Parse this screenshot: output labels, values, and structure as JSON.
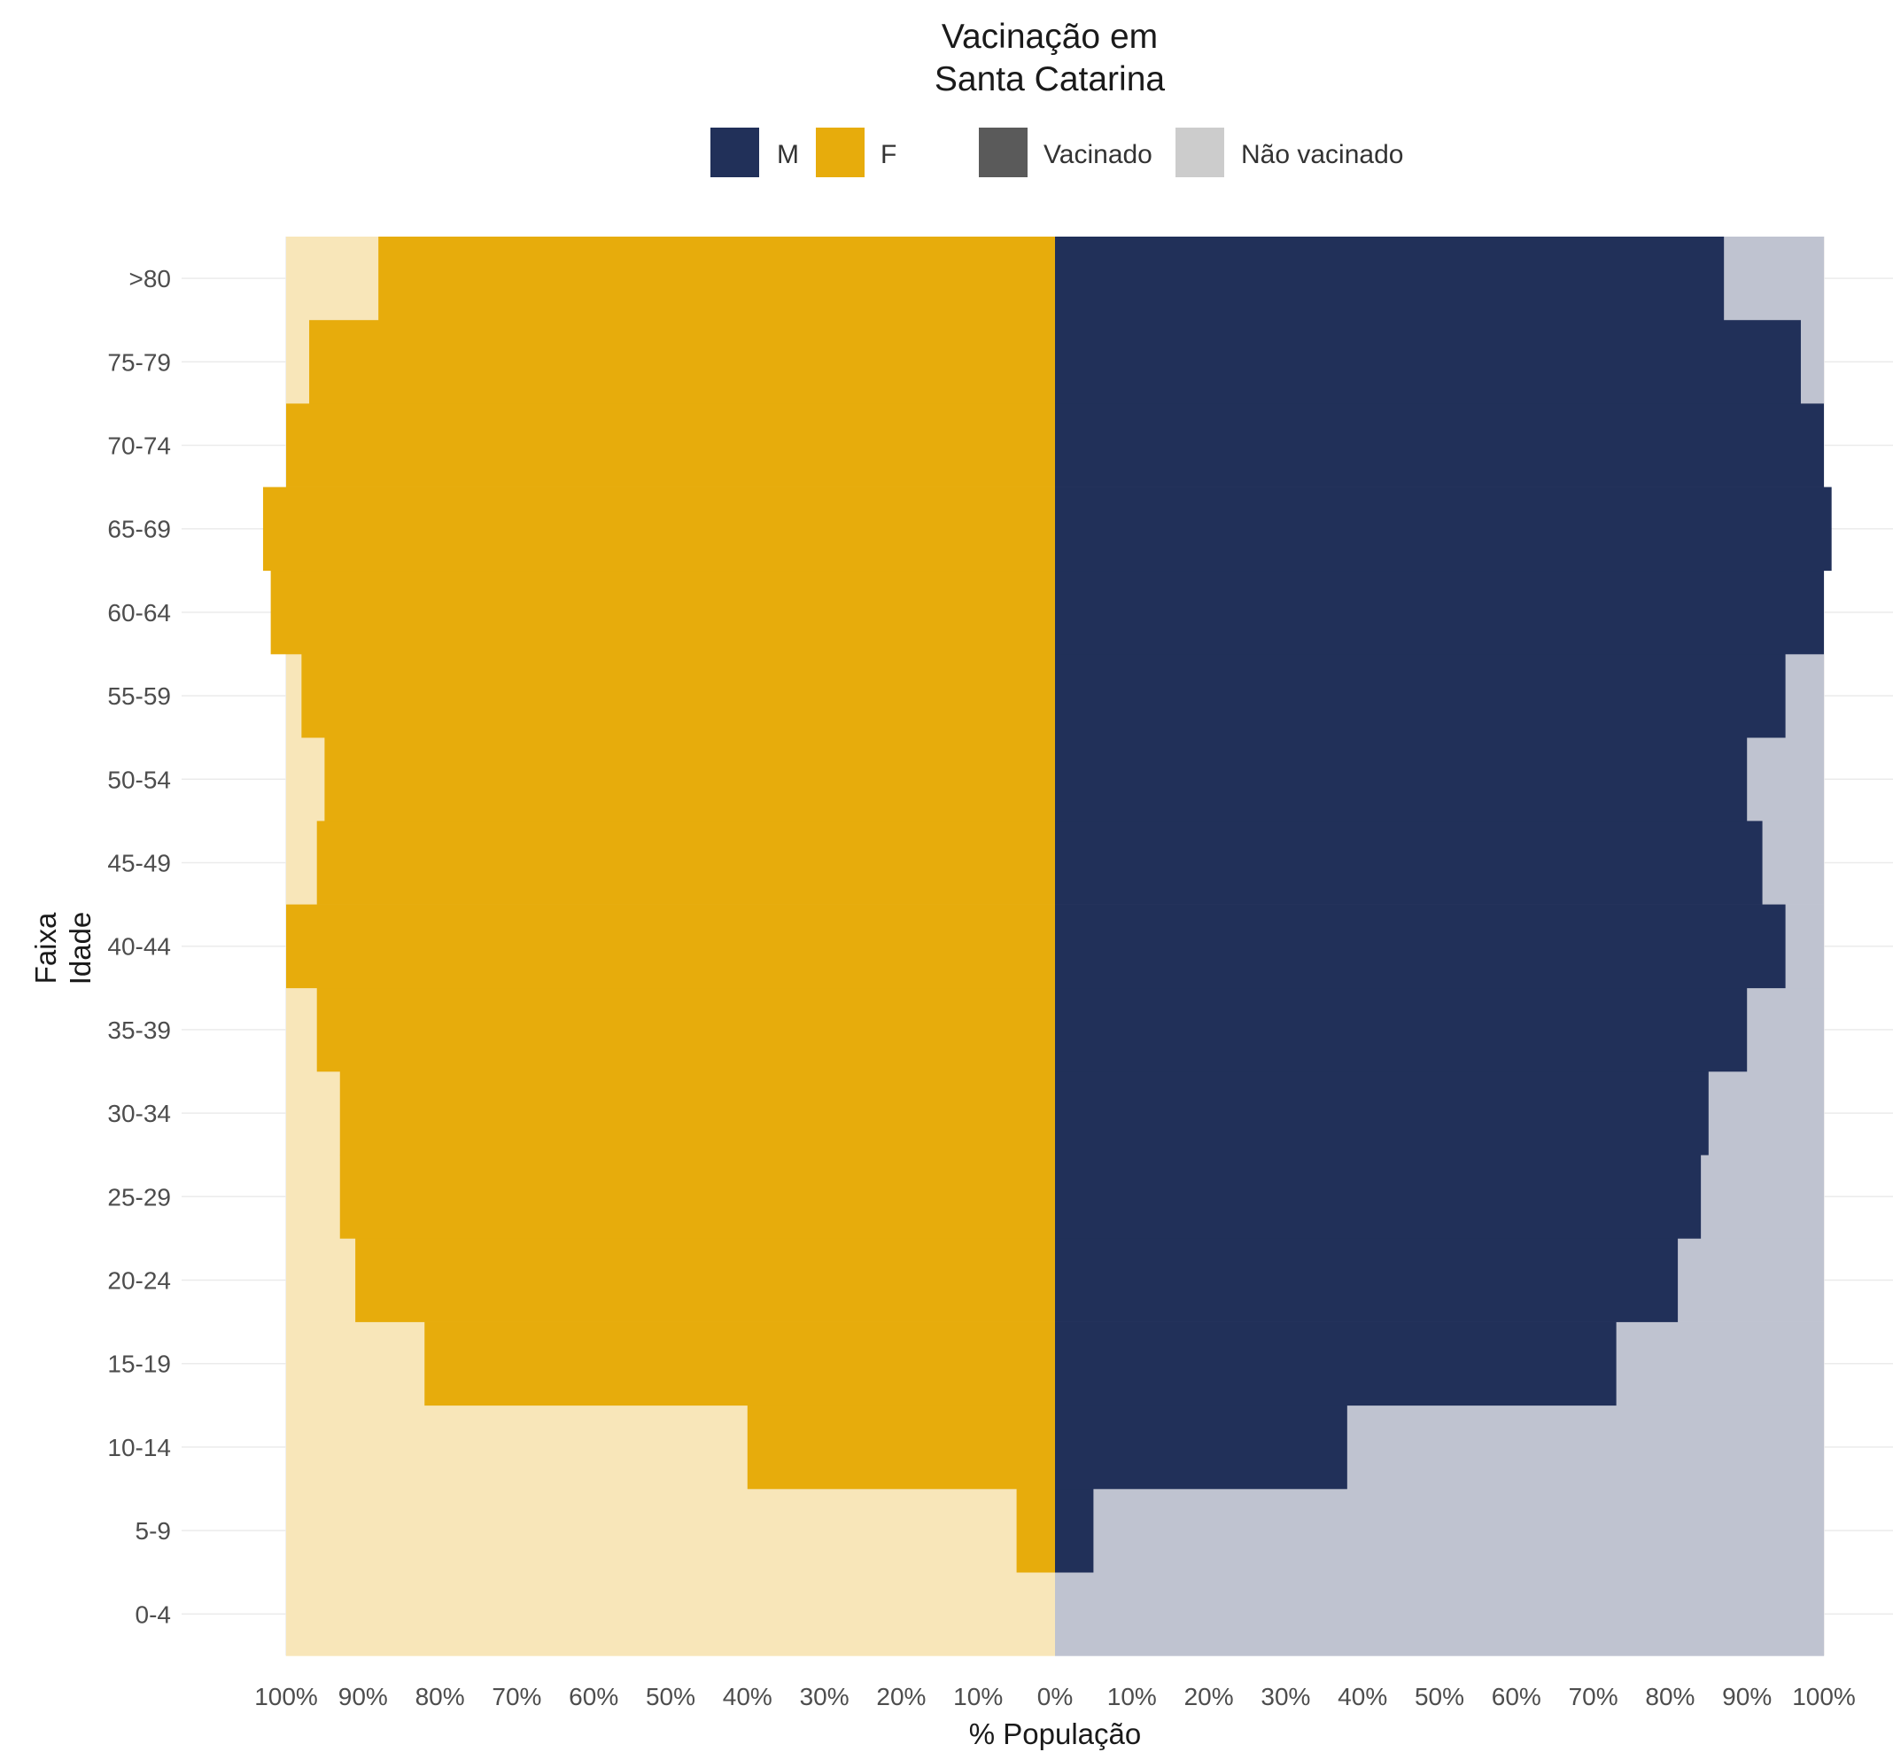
{
  "chart_data": {
    "type": "bar",
    "title_line1": "Vacinação em",
    "title_line2": "Santa Catarina",
    "xlabel": "% População",
    "ylabel_line1": "Faixa",
    "ylabel_line2": "Idade",
    "categories": [
      "0-4",
      "5-9",
      "10-14",
      "15-19",
      "20-24",
      "25-29",
      "30-34",
      "35-39",
      "40-44",
      "45-49",
      "50-54",
      "55-59",
      "60-64",
      "65-69",
      "70-74",
      "75-79",
      ">80"
    ],
    "series": [
      {
        "name": "M",
        "vaccinated_pct": [
          0,
          5,
          38,
          73,
          81,
          84,
          85,
          90,
          95,
          92,
          90,
          95,
          100,
          101,
          100,
          97,
          87
        ]
      },
      {
        "name": "F",
        "vaccinated_pct": [
          0,
          5,
          40,
          82,
          91,
          93,
          93,
          96,
          100,
          96,
          95,
          98,
          102,
          103,
          100,
          97,
          88
        ]
      }
    ],
    "background_pct": 100,
    "xlim": [
      -100,
      100
    ],
    "x_ticks": [
      "100%",
      "90%",
      "80%",
      "70%",
      "60%",
      "50%",
      "40%",
      "30%",
      "20%",
      "10%",
      "0%",
      "10%",
      "20%",
      "30%",
      "40%",
      "50%",
      "60%",
      "70%",
      "80%",
      "90%",
      "100%"
    ],
    "legend": {
      "position": "top",
      "sex": [
        {
          "label": "M",
          "color": "#213059"
        },
        {
          "label": "F",
          "color": "#e7ac0c"
        }
      ],
      "status": [
        {
          "label": "Vacinado",
          "color": "#5a5a5a"
        },
        {
          "label": "Não vacinado",
          "color": "#cccccc"
        }
      ]
    },
    "colors": {
      "M": "#213059",
      "F": "#e7ac0c",
      "M_unvaccinated": "#bfc3d0",
      "F_unvaccinated": "#f8e6b9"
    },
    "grid": true
  }
}
